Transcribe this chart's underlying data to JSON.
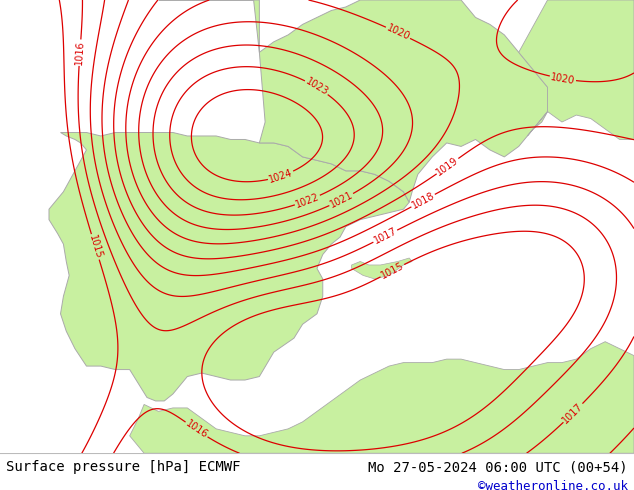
{
  "title_left": "Surface pressure [hPa] ECMWF",
  "title_right": "Mo 27-05-2024 06:00 UTC (00+54)",
  "copyright": "©weatheronline.co.uk",
  "bg_color_land_green": "#c8f0a0",
  "bg_color_sea": "#e0e0e0",
  "contour_color": "#dd0000",
  "coastline_color": "#aaaaaa",
  "footer_text_color": "#000000",
  "copyright_color": "#0000cc",
  "font_size_footer": 10,
  "font_size_labels": 7,
  "figsize": [
    6.34,
    4.9
  ],
  "dpi": 100,
  "lon_min": -11,
  "lon_max": 11,
  "lat_min": 34.5,
  "lat_max": 47.5
}
